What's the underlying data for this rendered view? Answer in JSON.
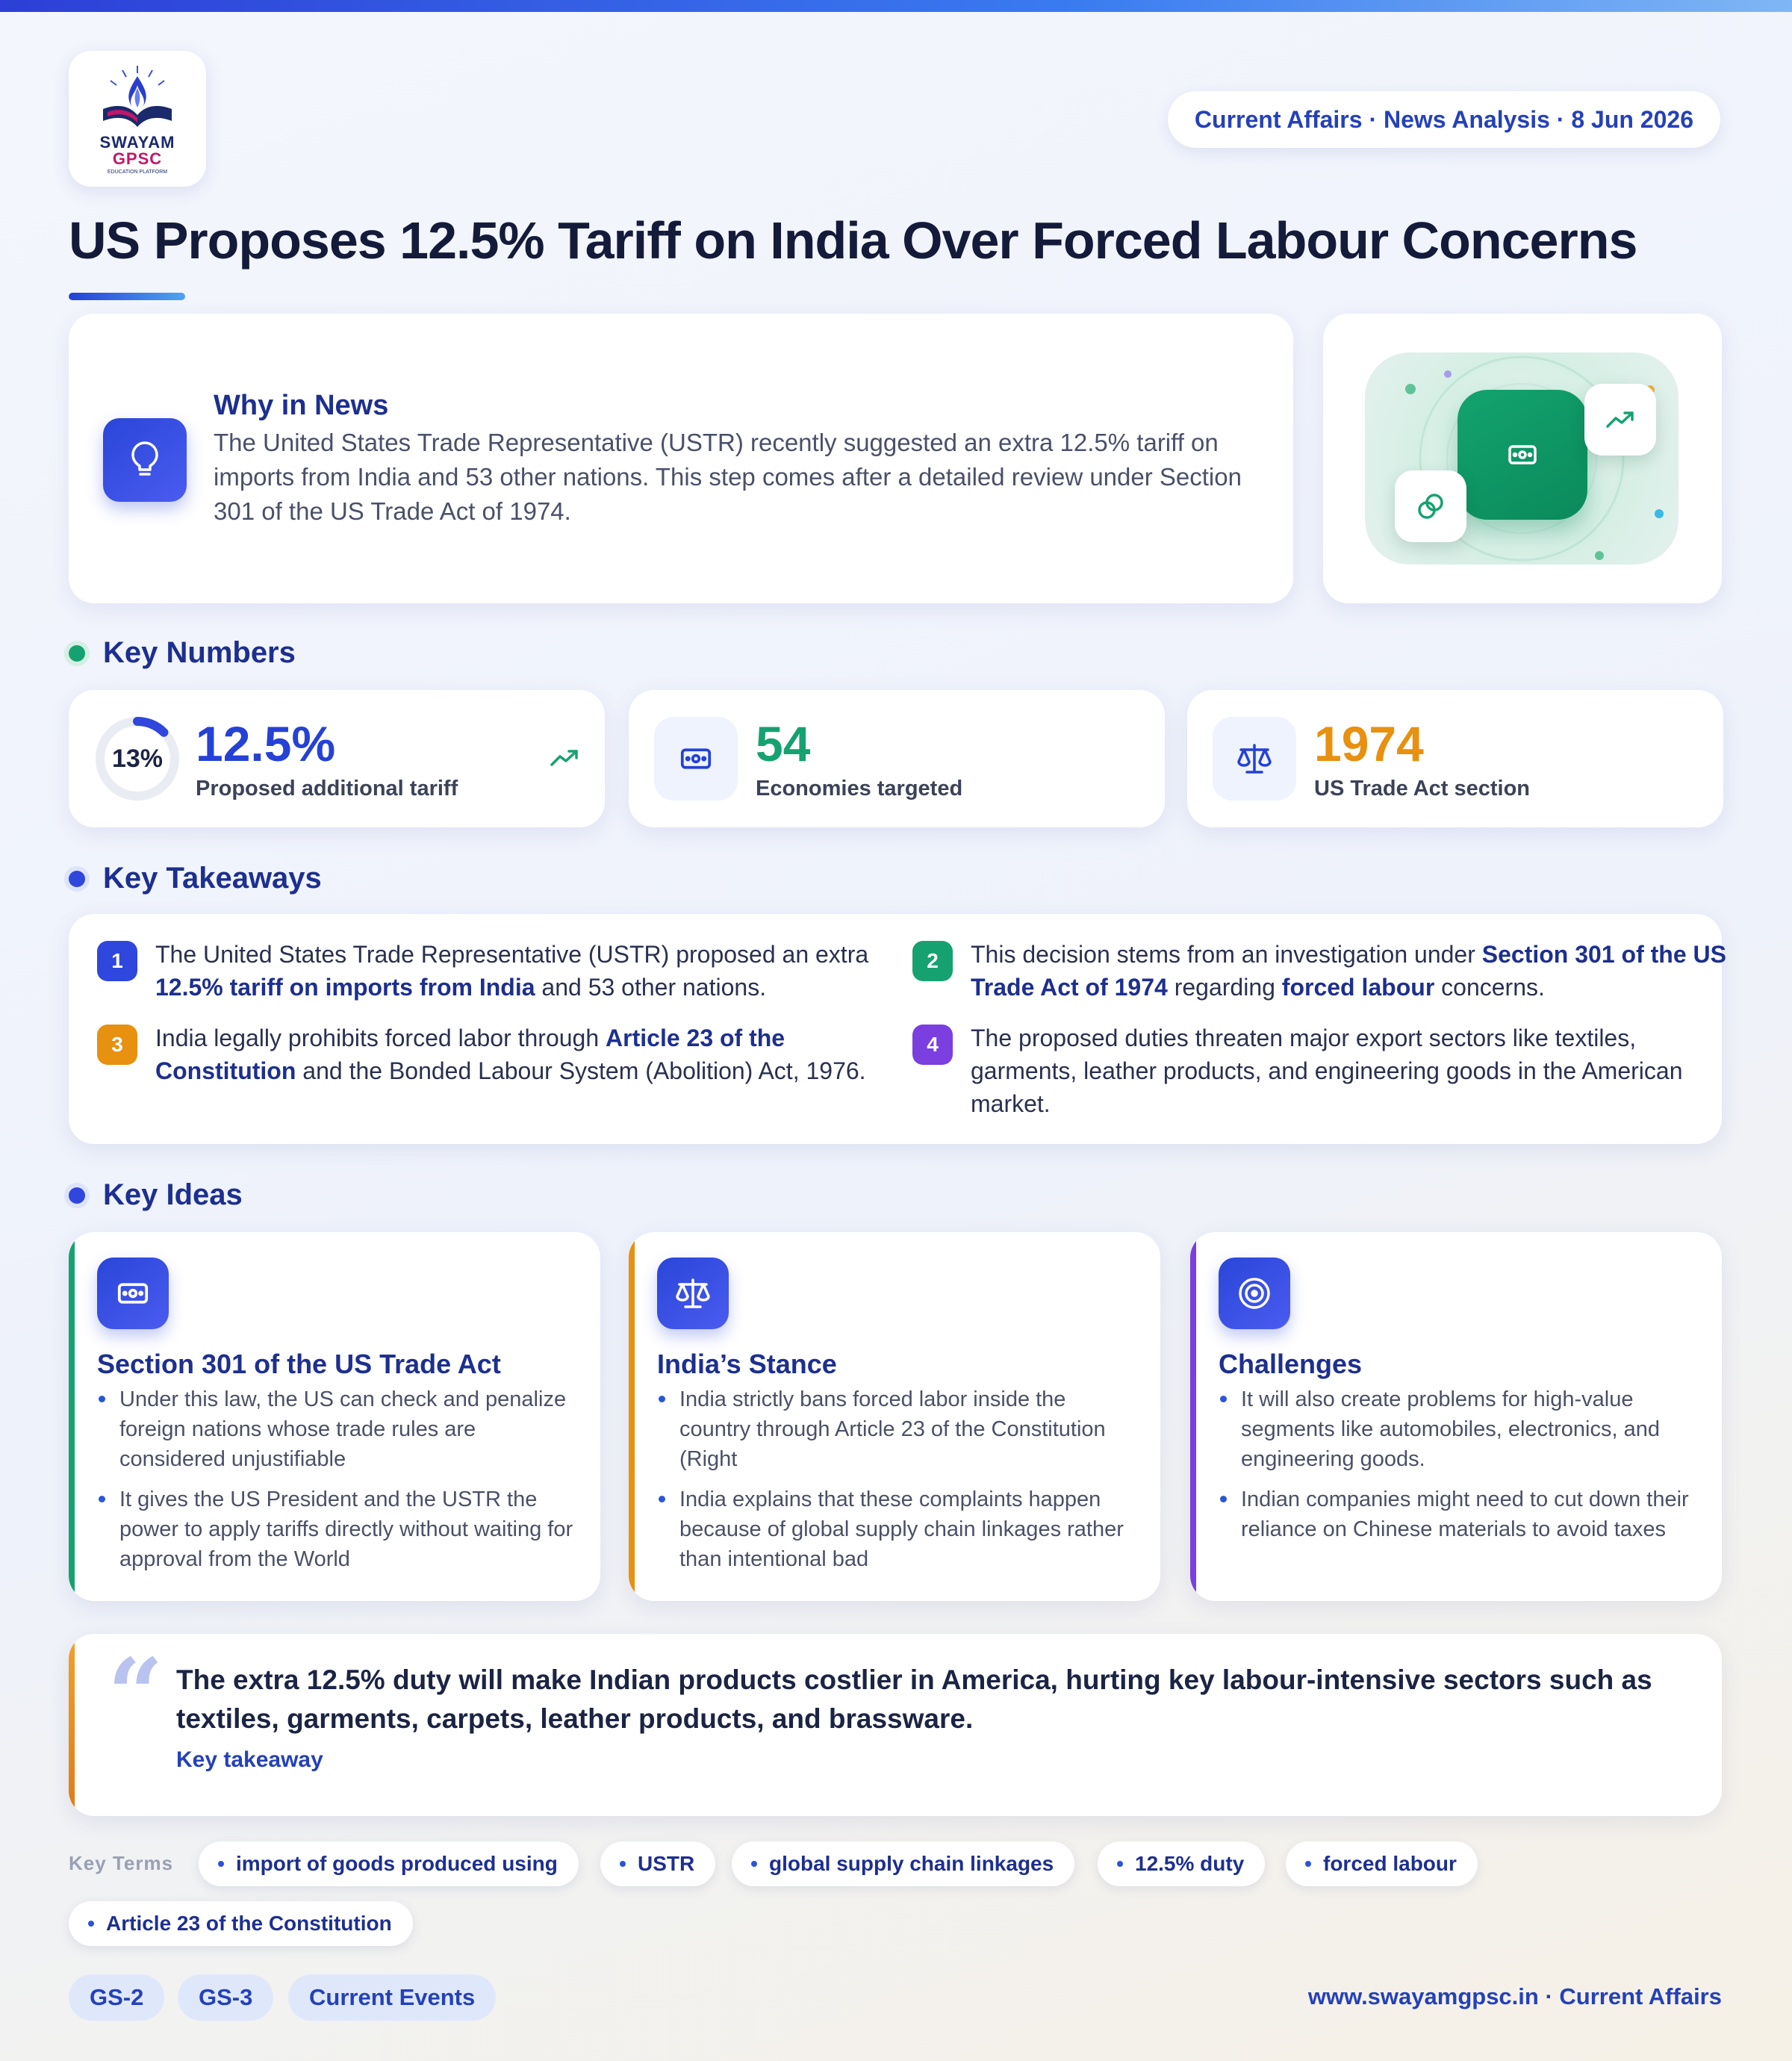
{
  "logo": {
    "line1": "SWAYAM",
    "line2": "GPSC",
    "line3": "EDUCATION PLATFORM"
  },
  "dateline": "Current Affairs · News Analysis · 8 Jun 2026",
  "title": "US Proposes 12.5% Tariff on India Over Forced Labour Concerns",
  "why": {
    "heading": "Why in News",
    "text": "The United States Trade Representative (USTR) recently suggested an extra 12.5% tariff on imports from India and 53 other nations. This step comes after a detailed review under Section 301 of the US Trade Act of 1974."
  },
  "sections": {
    "key_numbers": "Key Numbers",
    "key_takeaways": "Key Takeaways",
    "key_ideas": "Key Ideas"
  },
  "key_numbers": [
    {
      "value": "12.5%",
      "label": "Proposed additional tariff",
      "ring_text": "13%",
      "ring_fraction": 0.125,
      "color": "#2541d6",
      "icon": "trend-up-icon"
    },
    {
      "value": "54",
      "label": "Economies targeted",
      "color": "#16a270",
      "icon": "money-icon"
    },
    {
      "value": "1974",
      "label": "US Trade Act section",
      "color": "#e8900f",
      "icon": "scale-icon"
    }
  ],
  "takeaways": [
    {
      "num": "1",
      "color": "#2f47dc",
      "parts": [
        [
          "The United States Trade Representative (USTR) proposed an extra ",
          false
        ],
        [
          "12.5% tariff on imports from India",
          true
        ],
        [
          " and 53 other nations.",
          false
        ]
      ]
    },
    {
      "num": "2",
      "color": "#16a270",
      "parts": [
        [
          "This decision stems from an investigation under ",
          false
        ],
        [
          "Section 301 of the US Trade Act of 1974",
          true
        ],
        [
          " regarding ",
          false
        ],
        [
          "forced labour",
          true
        ],
        [
          " concerns.",
          false
        ]
      ]
    },
    {
      "num": "3",
      "color": "#e8900f",
      "parts": [
        [
          "India legally prohibits forced labor through ",
          false
        ],
        [
          "Article 23 of the Constitution",
          true
        ],
        [
          " and the Bonded Labour System (Abolition) Act, 1976.",
          false
        ]
      ]
    },
    {
      "num": "4",
      "color": "#7b3fe0",
      "parts": [
        [
          "The proposed duties threaten major export sectors like textiles, garments, leather products, and engineering goods in the American market.",
          false
        ]
      ]
    }
  ],
  "ideas": [
    {
      "title": "Section 301 of the US Trade Act",
      "stripe": "#16a270",
      "icon": "money-icon",
      "points": [
        "Under this law, the US can check and penalize foreign nations whose trade rules are considered unjustifiable",
        "It gives the US President and the USTR the power to apply tariffs directly without waiting for approval from the World"
      ]
    },
    {
      "title": "India’s Stance",
      "stripe": "#e8900f",
      "icon": "scale-icon",
      "points": [
        "India strictly bans forced labor inside the country through Article 23 of the Constitution (Right",
        "India explains that these complaints happen because of global supply chain linkages rather than intentional bad"
      ]
    },
    {
      "title": "Challenges",
      "stripe": "#7b3fe0",
      "icon": "target-icon",
      "points": [
        "It will also create problems for high-value segments like automobiles, electronics, and engineering goods.",
        "Indian companies might need to cut down their reliance on Chinese materials to avoid taxes"
      ]
    }
  ],
  "quote": {
    "text": "The extra 12.5% duty will make Indian products costlier in America, hurting key labour-intensive sectors such as textiles, garments, carpets, leather products, and brassware.",
    "caption": "Key takeaway"
  },
  "key_terms_label": "Key Terms",
  "key_terms": [
    "import of goods produced using",
    "USTR",
    "global supply chain linkages",
    "12.5% duty",
    "forced labour",
    "Article 23 of the Constitution"
  ],
  "tags": [
    "GS-2",
    "GS-3",
    "Current Events"
  ],
  "footer": "www.swayamgpsc.in · Current Affairs"
}
